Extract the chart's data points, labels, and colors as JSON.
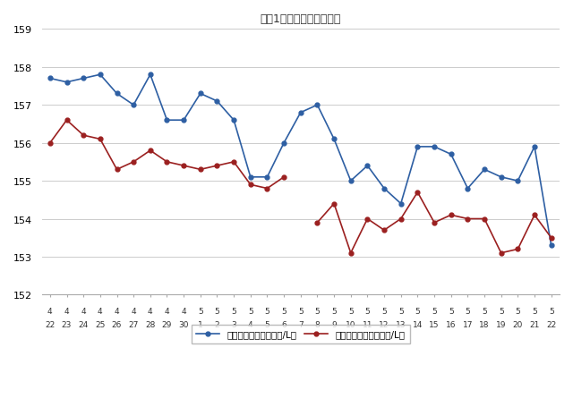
{
  "title": "最近1ヶ月のハイオク価格",
  "x_labels_top": [
    "4",
    "4",
    "4",
    "4",
    "4",
    "4",
    "4",
    "4",
    "4",
    "5",
    "5",
    "5",
    "5",
    "5",
    "5",
    "5",
    "5",
    "5",
    "5",
    "5",
    "5",
    "5",
    "5",
    "5",
    "5",
    "5",
    "5",
    "5",
    "5",
    "5",
    "5"
  ],
  "x_labels_bot": [
    "22",
    "23",
    "24",
    "25",
    "26",
    "27",
    "28",
    "29",
    "30",
    "1",
    "2",
    "3",
    "4",
    "5",
    "6",
    "7",
    "8",
    "9",
    "10",
    "11",
    "12",
    "13",
    "14",
    "15",
    "16",
    "17",
    "18",
    "19",
    "20",
    "21",
    "22"
  ],
  "blue_values": [
    157.7,
    157.6,
    157.7,
    157.8,
    157.3,
    157.0,
    157.8,
    156.6,
    156.6,
    157.3,
    157.1,
    156.6,
    155.1,
    155.1,
    156.0,
    156.8,
    157.0,
    156.1,
    155.0,
    155.4,
    154.8,
    154.4,
    155.9,
    155.9,
    155.7,
    154.8,
    155.3,
    155.1,
    155.0,
    155.9,
    153.3
  ],
  "red_values": [
    156.0,
    156.6,
    156.2,
    156.1,
    155.3,
    155.5,
    155.8,
    155.5,
    155.4,
    155.3,
    155.4,
    155.5,
    154.9,
    154.8,
    155.1,
    null,
    153.9,
    154.4,
    153.1,
    154.0,
    153.7,
    154.0,
    154.7,
    153.9,
    154.1,
    154.0,
    154.0,
    153.1,
    153.2,
    154.1,
    153.5
  ],
  "ylim": [
    152,
    159
  ],
  "yticks": [
    152,
    153,
    154,
    155,
    156,
    157,
    158,
    159
  ],
  "blue_color": "#2E5FA3",
  "red_color": "#9B2020",
  "blue_label": "ハイオク看板価格（円/L）",
  "red_label": "ハイオク実売価格（円/L）",
  "background_color": "#FFFFFF",
  "grid_color": "#CCCCCC"
}
